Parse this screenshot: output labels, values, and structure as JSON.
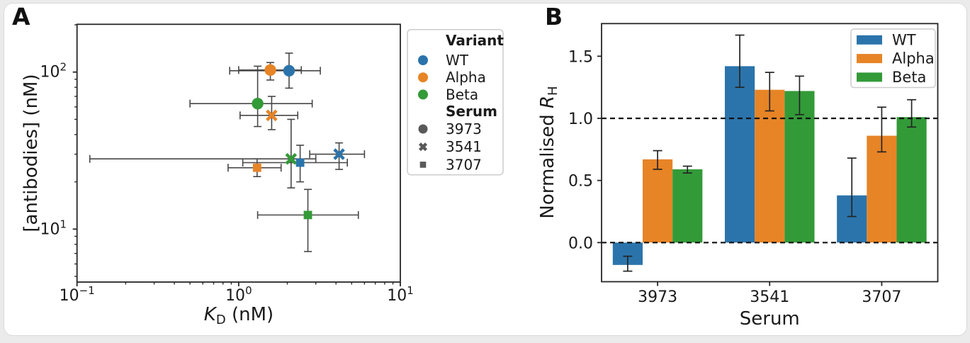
{
  "page": {
    "background": "#ebebeb",
    "card_background": "#ffffff",
    "card_border": "#d9d9d9"
  },
  "colors": {
    "WT": "#2b74ab",
    "Alpha": "#e78426",
    "Beta": "#339a38",
    "serum_marker": "#595959",
    "error_a": "#474747",
    "error_b": "#242424",
    "axis": "#262626",
    "text": "#1a1a1a",
    "legend_border": "#cccccc"
  },
  "panel_a": {
    "label": "A",
    "xlabel": {
      "italic": "K",
      "sub": "D",
      "rest": " (nM)"
    },
    "ylabel": "[antibodies] (nM)",
    "x_ticks": [
      {
        "value": 0.1,
        "base": "10",
        "exp": "−1"
      },
      {
        "value": 1,
        "base": "10",
        "exp": "0"
      },
      {
        "value": 10,
        "base": "10",
        "exp": "1"
      }
    ],
    "y_ticks": [
      {
        "value": 10,
        "base": "10",
        "exp": "1"
      },
      {
        "value": 100,
        "base": "10",
        "exp": "2"
      }
    ],
    "legend": {
      "variant_title": "Variant",
      "variants": [
        {
          "name": "WT"
        },
        {
          "name": "Alpha"
        },
        {
          "name": "Beta"
        }
      ],
      "serum_title": "Serum",
      "serums": [
        {
          "name": "3973",
          "marker": "circle"
        },
        {
          "name": "3541",
          "marker": "x"
        },
        {
          "name": "3707",
          "marker": "square"
        }
      ]
    }
  },
  "panel_b": {
    "label": "B",
    "xlabel": "Serum",
    "ylabel_prefix": "Normalised ",
    "ylabel_italic": "R",
    "ylabel_sub": "H",
    "y_tick_labels": [
      "0.0",
      "0.5",
      "1.0",
      "1.5"
    ],
    "legend": [
      "WT",
      "Alpha",
      "Beta"
    ]
  },
  "chart_data": [
    {
      "type": "scatter",
      "panel": "A",
      "xlabel": "K_D (nM)",
      "ylabel": "[antibodies] (nM)",
      "xscale": "log",
      "yscale": "log",
      "xlim": [
        0.1,
        10
      ],
      "ylim": [
        4.6,
        201
      ],
      "x_major_ticks": [
        0.1,
        1,
        10
      ],
      "y_major_ticks": [
        10,
        100
      ],
      "legend_sections": {
        "Variant": [
          "WT",
          "Alpha",
          "Beta"
        ],
        "Serum": [
          "3973",
          "3541",
          "3707"
        ]
      },
      "points": [
        {
          "variant": "WT",
          "serum": "3973",
          "marker": "circle",
          "x": 2.05,
          "y": 102,
          "x_err": [
            0.88,
            3.2
          ],
          "y_err": [
            79,
            132
          ]
        },
        {
          "variant": "Alpha",
          "serum": "3973",
          "marker": "circle",
          "x": 1.57,
          "y": 103,
          "x_err": [
            1.0,
            2.44
          ],
          "y_err": [
            89,
            115
          ]
        },
        {
          "variant": "Beta",
          "serum": "3973",
          "marker": "circle",
          "x": 1.31,
          "y": 63,
          "x_err": [
            0.5,
            2.85
          ],
          "y_err": [
            45,
            109
          ]
        },
        {
          "variant": "WT",
          "serum": "3541",
          "marker": "x",
          "x": 4.18,
          "y": 30,
          "x_err": [
            2.75,
            6.0
          ],
          "y_err": [
            24,
            35.4
          ]
        },
        {
          "variant": "Alpha",
          "serum": "3541",
          "marker": "x",
          "x": 1.6,
          "y": 53,
          "x_err": [
            1.02,
            2.32
          ],
          "y_err": [
            43,
            70
          ]
        },
        {
          "variant": "Beta",
          "serum": "3541",
          "marker": "x",
          "x": 2.11,
          "y": 28,
          "x_err": [
            0.12,
            3.0
          ],
          "y_err": [
            18.3,
            50
          ]
        },
        {
          "variant": "WT",
          "serum": "3707",
          "marker": "square",
          "x": 2.4,
          "y": 26.5,
          "x_err": [
            1.06,
            4.7
          ],
          "y_err": [
            20,
            34.2
          ]
        },
        {
          "variant": "Alpha",
          "serum": "3707",
          "marker": "square",
          "x": 1.3,
          "y": 24.6,
          "x_err": [
            0.86,
            1.83
          ],
          "y_err": [
            21.6,
            28
          ]
        },
        {
          "variant": "Beta",
          "serum": "3707",
          "marker": "square",
          "x": 2.68,
          "y": 12.3,
          "x_err": [
            1.31,
            5.5
          ],
          "y_err": [
            7.2,
            17.9
          ]
        }
      ]
    },
    {
      "type": "bar",
      "panel": "B",
      "categories": [
        "3973",
        "3541",
        "3707"
      ],
      "series": [
        {
          "name": "WT",
          "values": [
            -0.18,
            1.42,
            0.38
          ],
          "err_low": [
            -0.23,
            1.25,
            0.21
          ],
          "err_high": [
            -0.11,
            1.67,
            0.68
          ]
        },
        {
          "name": "Alpha",
          "values": [
            0.67,
            1.23,
            0.86
          ],
          "err_low": [
            0.59,
            1.06,
            0.73
          ],
          "err_high": [
            0.74,
            1.37,
            1.09
          ]
        },
        {
          "name": "Beta",
          "values": [
            0.59,
            1.22,
            1.01
          ],
          "err_low": [
            0.56,
            1.03,
            0.93
          ],
          "err_high": [
            0.615,
            1.34,
            1.15
          ]
        }
      ],
      "xlabel": "Serum",
      "ylabel": "Normalised R_H",
      "ylim": [
        -0.32,
        1.78
      ],
      "yticks": [
        0.0,
        0.5,
        1.0,
        1.5
      ],
      "dashed_hlines": [
        0.0,
        1.0
      ],
      "legend_position": "upper right",
      "grid": false
    }
  ]
}
